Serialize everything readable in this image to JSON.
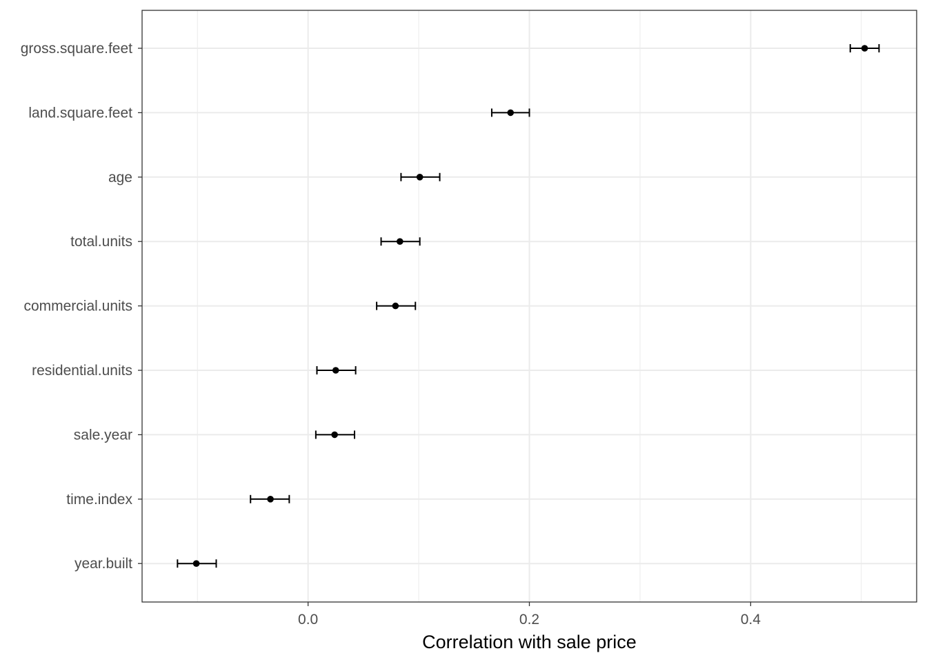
{
  "chart_data": {
    "type": "scatter",
    "subtype": "point-with-error-bars",
    "title": "",
    "xlabel": "Correlation with sale price",
    "ylabel": "",
    "xlim": [
      -0.15,
      0.55
    ],
    "xticks": [
      0.0,
      0.2,
      0.4
    ],
    "xtick_labels": [
      "0.0",
      "0.2",
      "0.4"
    ],
    "grid": true,
    "legend": "none",
    "categories": [
      "gross.square.feet",
      "land.square.feet",
      "age",
      "total.units",
      "commercial.units",
      "residential.units",
      "sale.year",
      "time.index",
      "year.built"
    ],
    "estimates": [
      0.503,
      0.183,
      0.101,
      0.083,
      0.079,
      0.025,
      0.024,
      -0.034,
      -0.101
    ],
    "lower": [
      0.49,
      0.166,
      0.084,
      0.066,
      0.062,
      0.008,
      0.007,
      -0.052,
      -0.118
    ],
    "upper": [
      0.516,
      0.2,
      0.119,
      0.101,
      0.097,
      0.043,
      0.042,
      -0.017,
      -0.083
    ]
  },
  "colors": {
    "background": "#ffffff",
    "grid": "#ebebeb",
    "panel_border": "#333333",
    "point": "#000000",
    "tick_label": "#4d4d4d"
  }
}
